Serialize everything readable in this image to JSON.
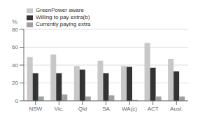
{
  "chart_data": {
    "type": "bar",
    "categories": [
      "NSW",
      "Vic.",
      "Qld",
      "SA",
      "WA(c)",
      "ACT",
      "Aust."
    ],
    "series": [
      {
        "name": "GreenPower aware",
        "color": "#c8c8c8",
        "values": [
          49,
          52,
          39,
          45,
          39,
          65,
          47
        ]
      },
      {
        "name": "Willing to pay extra(b)",
        "color": "#333333",
        "values": [
          31,
          31,
          35,
          31,
          38,
          37,
          33
        ]
      },
      {
        "name": "Currently paying extra",
        "color": "#a0a0a0",
        "values": [
          5,
          7,
          5,
          6,
          1,
          5,
          5
        ]
      }
    ],
    "ylabel": "%",
    "ylim": [
      0,
      80
    ],
    "yticks": [
      0,
      20,
      40,
      60,
      80
    ],
    "grid": true,
    "legend": "upper left"
  }
}
